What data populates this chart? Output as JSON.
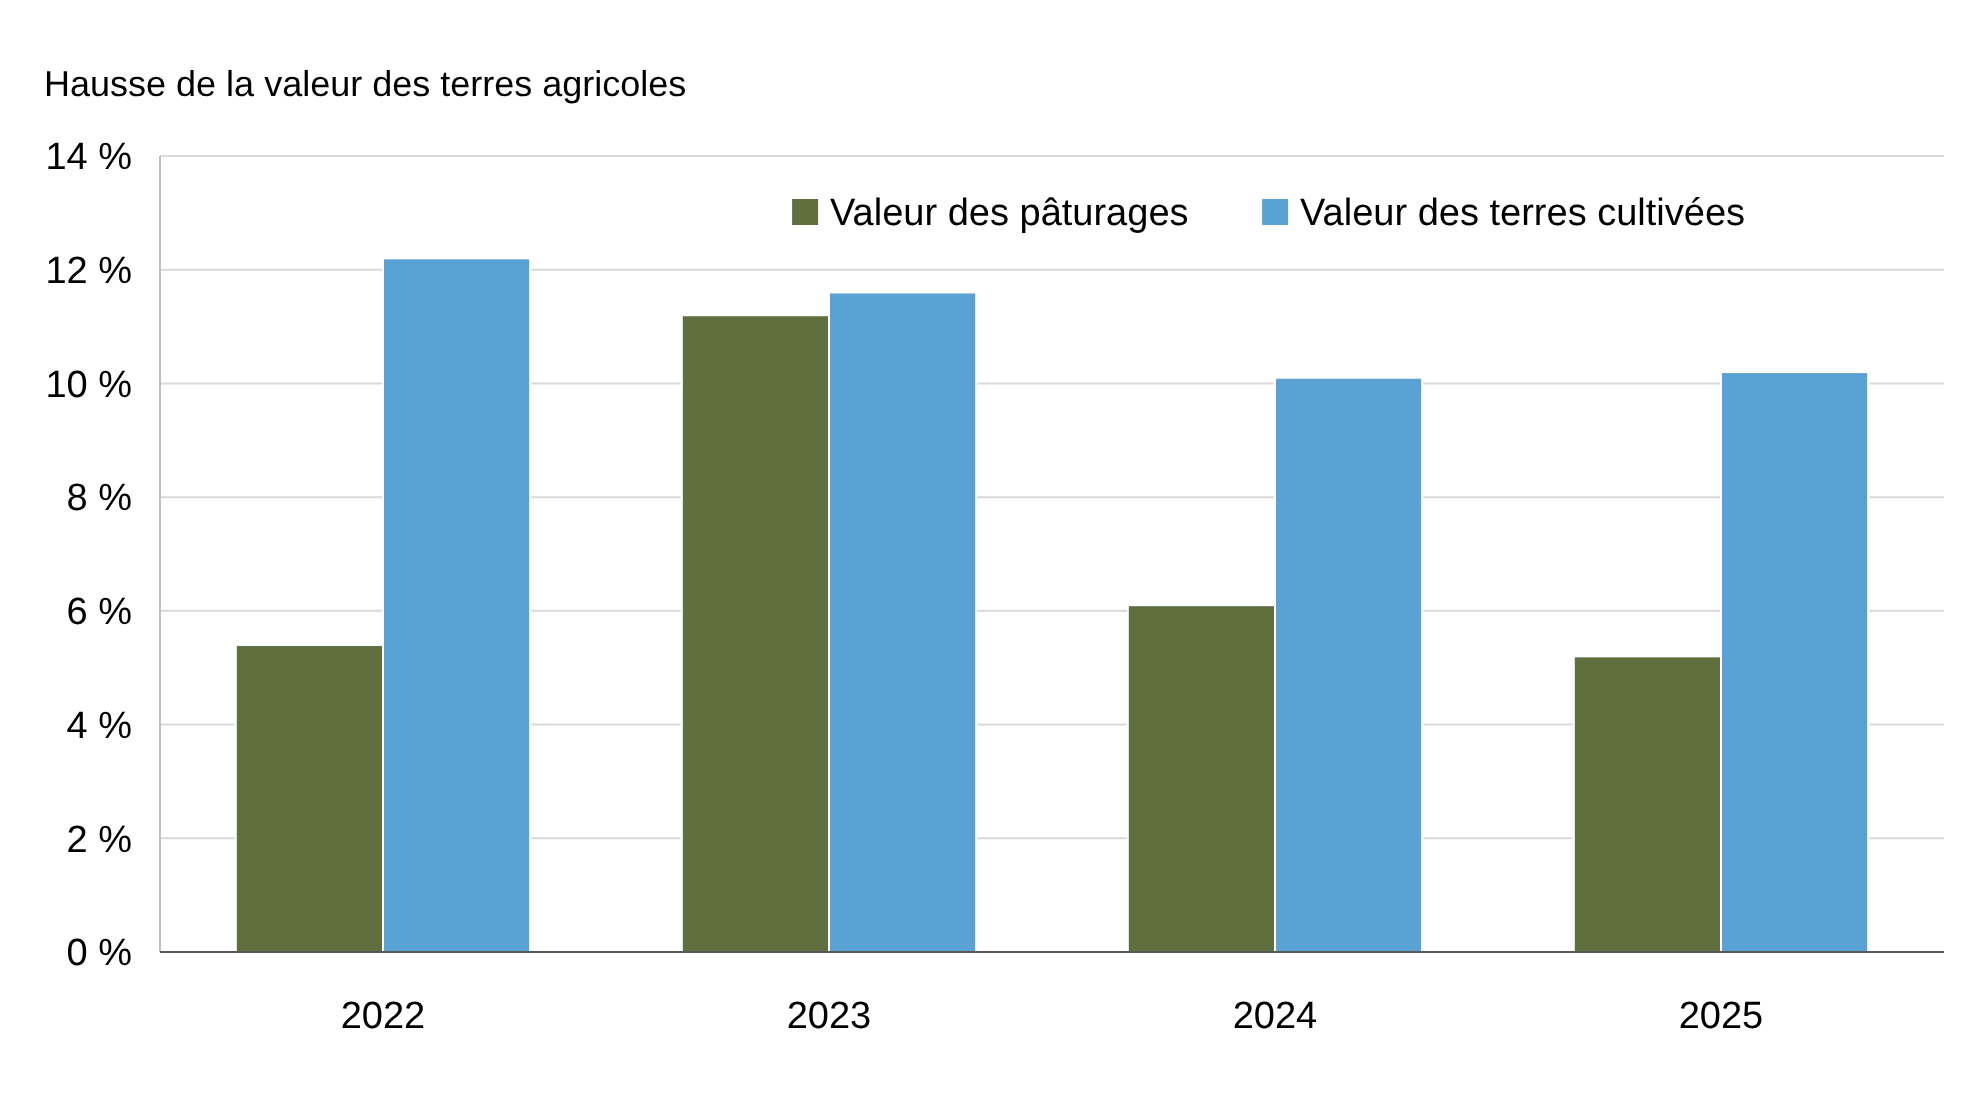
{
  "chart_data": {
    "type": "bar",
    "title": "Hausse de la valeur des terres agricoles",
    "categories": [
      "2022",
      "2023",
      "2024",
      "2025"
    ],
    "series": [
      {
        "name": "Valeur des pâturages",
        "color": "#5f6f3e",
        "values": [
          5.4,
          11.2,
          6.1,
          5.2
        ]
      },
      {
        "name": "Valeur des terres cultivées",
        "color": "#5aa2d4",
        "values": [
          12.2,
          11.6,
          10.1,
          10.2
        ]
      }
    ],
    "ylim": [
      0,
      14
    ],
    "yticks": [
      {
        "value": 0,
        "label": "0 %"
      },
      {
        "value": 2,
        "label": "2 %"
      },
      {
        "value": 4,
        "label": "4 %"
      },
      {
        "value": 6,
        "label": "6 %"
      },
      {
        "value": 8,
        "label": "8 %"
      },
      {
        "value": 10,
        "label": "10 %"
      },
      {
        "value": 12,
        "label": "12 %"
      },
      {
        "value": 14,
        "label": "14 %"
      }
    ],
    "grid": "y",
    "legend": "top"
  }
}
